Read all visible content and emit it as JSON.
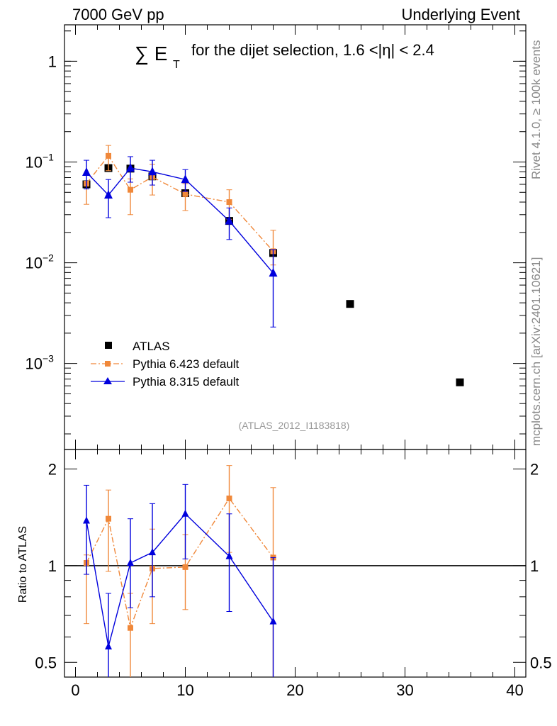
{
  "header": {
    "left_label": "7000 GeV pp",
    "right_label": "Underlying Event"
  },
  "side_labels": {
    "rivet": "Rivet 4.1.0, ≥ 100k events",
    "mcplots": "mcplots.cern.ch [arXiv:2401.10621]"
  },
  "chart_data": {
    "type": "scatter",
    "title_prefix": "∑ E",
    "title_subscript": "T",
    "title_suffix": "for the dijet selection, 1.6 <|η| < 2.4",
    "analysis_label": "(ATLAS_2012_I1183818)",
    "x_axis": {
      "range": [
        -1,
        41
      ],
      "ticks": [
        0,
        10,
        20,
        30,
        40
      ],
      "tick_labels": [
        "0",
        "10",
        "20",
        "30",
        "40"
      ]
    },
    "main_y_axis": {
      "scale": "log",
      "range": [
        0.00014,
        2.3
      ],
      "ticks": [
        1,
        0.1,
        0.01,
        0.001
      ],
      "tick_labels": [
        {
          "base": "1",
          "exp": ""
        },
        {
          "base": "10",
          "exp": "−1"
        },
        {
          "base": "10",
          "exp": "−2"
        },
        {
          "base": "10",
          "exp": "−3"
        }
      ]
    },
    "ratio_y_axis": {
      "label": "Ratio to ATLAS",
      "scale": "log",
      "range": [
        0.45,
        2.3
      ],
      "ticks": [
        0.5,
        1,
        2
      ],
      "tick_labels": [
        "0.5",
        "1",
        "2"
      ],
      "reference_line": 1
    },
    "legend": {
      "position": "lower-left",
      "entries": [
        {
          "label": "ATLAS",
          "color": "#000000",
          "marker": "square",
          "line": "none"
        },
        {
          "label": "Pythia 6.423 default",
          "color": "#f0883a",
          "marker": "square-small",
          "line": "dash-dot"
        },
        {
          "label": "Pythia 8.315 default",
          "color": "#0000dd",
          "marker": "triangle",
          "line": "solid"
        }
      ]
    },
    "series": [
      {
        "name": "ATLAS",
        "color": "#000000",
        "x": [
          1,
          3,
          5,
          7,
          10,
          14,
          18,
          25,
          35
        ],
        "y": [
          0.06,
          0.087,
          0.086,
          0.072,
          0.049,
          0.026,
          0.0125,
          0.0039,
          0.00065
        ],
        "y_low": [
          0.06,
          0.087,
          0.086,
          0.072,
          0.049,
          0.026,
          0.0125,
          0.0039,
          0.00065
        ],
        "y_high": [
          0.06,
          0.087,
          0.086,
          0.072,
          0.049,
          0.026,
          0.0125,
          0.0039,
          0.00065
        ],
        "ratio": [],
        "ratio_low": [],
        "ratio_high": []
      },
      {
        "name": "Pythia 6.423 default",
        "color": "#f0883a",
        "x": [
          1,
          3,
          5,
          7,
          10,
          14,
          18
        ],
        "y": [
          0.061,
          0.115,
          0.053,
          0.071,
          0.048,
          0.04,
          0.013
        ],
        "y_low": [
          0.038,
          0.082,
          0.03,
          0.047,
          0.033,
          0.027,
          0.0095
        ],
        "y_high": [
          0.064,
          0.146,
          0.068,
          0.095,
          0.061,
          0.053,
          0.021
        ],
        "ratio": [
          1.02,
          1.4,
          0.64,
          0.98,
          0.99,
          1.62,
          1.06
        ],
        "ratio_low": [
          0.66,
          0.96,
          0.4,
          0.66,
          0.73,
          1.1,
          0.42
        ],
        "ratio_high": [
          1.08,
          1.72,
          0.82,
          1.3,
          1.25,
          2.05,
          1.75
        ]
      },
      {
        "name": "Pythia 8.315 default",
        "color": "#0000dd",
        "x": [
          1,
          3,
          5,
          7,
          10,
          14,
          18
        ],
        "y": [
          0.079,
          0.047,
          0.087,
          0.08,
          0.067,
          0.026,
          0.0079
        ],
        "y_low": [
          0.054,
          0.028,
          0.063,
          0.059,
          0.051,
          0.017,
          0.0023
        ],
        "y_high": [
          0.104,
          0.067,
          0.113,
          0.104,
          0.084,
          0.035,
          0.0135
        ],
        "ratio": [
          1.38,
          0.56,
          1.02,
          1.1,
          1.45,
          1.07,
          0.67
        ],
        "ratio_low": [
          0.94,
          0.33,
          0.74,
          0.8,
          1.05,
          0.72,
          0.2
        ],
        "ratio_high": [
          1.78,
          0.82,
          1.4,
          1.56,
          1.79,
          1.45,
          1.06
        ]
      }
    ]
  }
}
